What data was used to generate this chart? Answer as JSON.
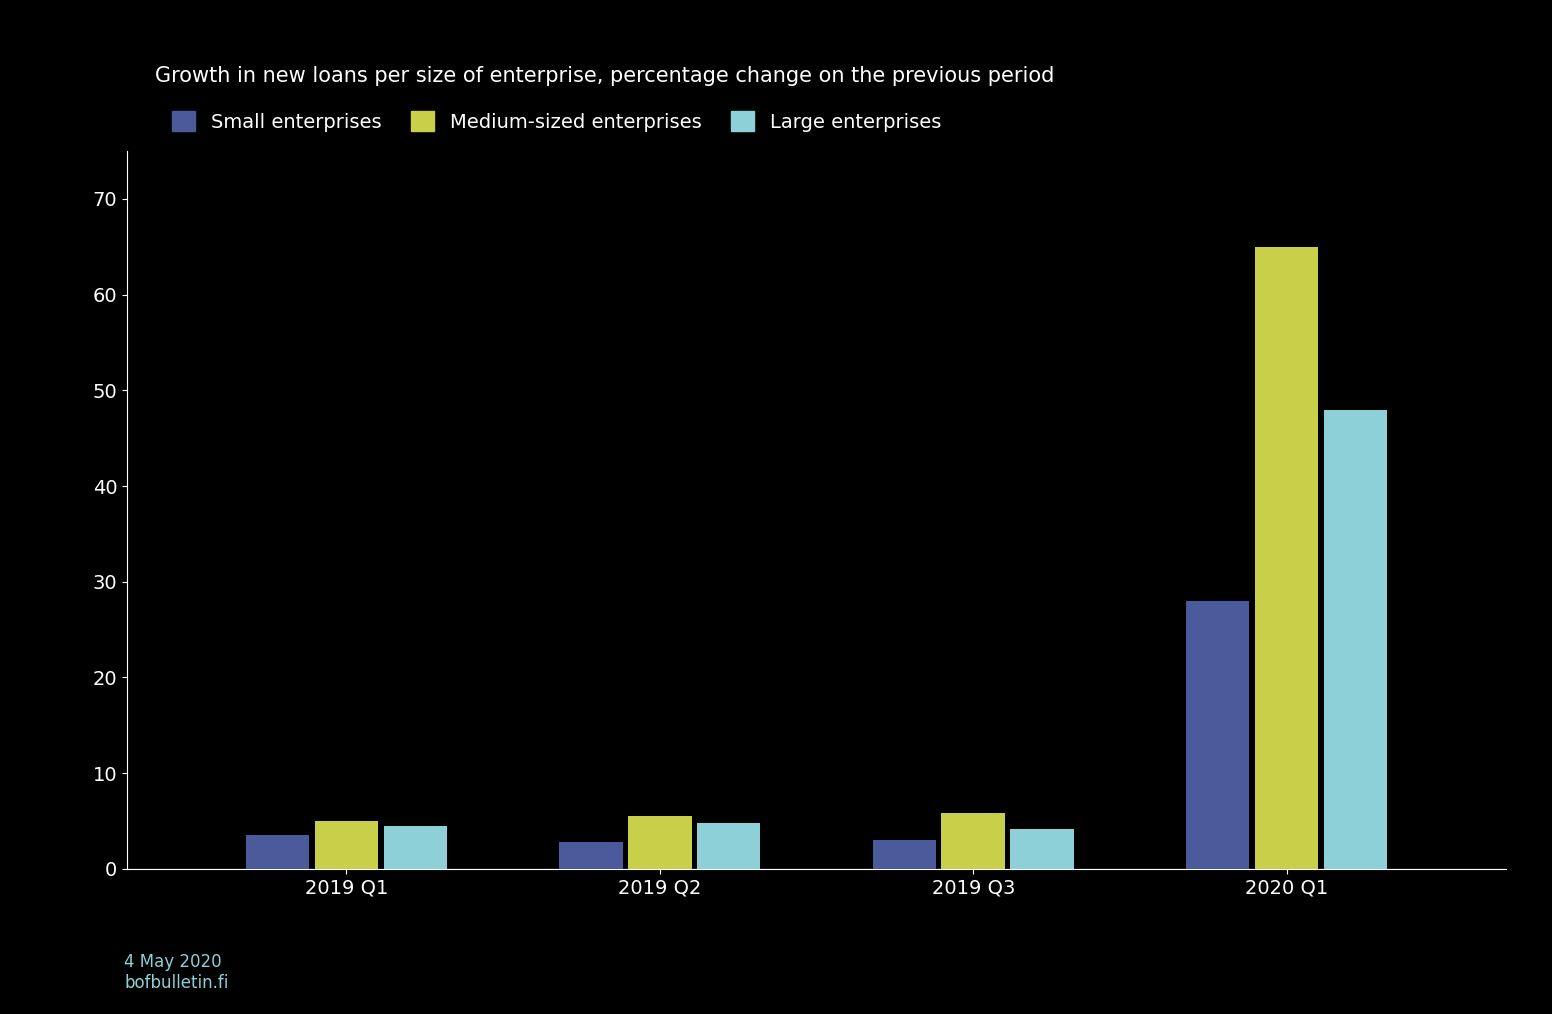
{
  "title": "Growth in new loans per size of enterprise, percentage change on the previous period",
  "background_color": "#000000",
  "text_color": "#ffffff",
  "bar_colors": [
    "#4a5a9a",
    "#c8d04a",
    "#8dd0d8"
  ],
  "legend_labels": [
    "Small enterprises",
    "Medium-sized enterprises",
    "Large enterprises"
  ],
  "categories": [
    "2019 Q1",
    "2019 Q2",
    "2019 Q3",
    "2020 Q1"
  ],
  "values": {
    "small": [
      3.5,
      2.8,
      3.0,
      28.0
    ],
    "medium": [
      5.0,
      5.5,
      5.8,
      65.0
    ],
    "large": [
      4.5,
      4.8,
      4.2,
      48.0
    ]
  },
  "ylim": [
    0,
    75
  ],
  "ylabel": "",
  "xlabel": "",
  "bar_width": 0.22,
  "footnote": "4 May 2020\nbofbulletin.fi",
  "footnote_color": "#8dd0d8",
  "grid": false
}
